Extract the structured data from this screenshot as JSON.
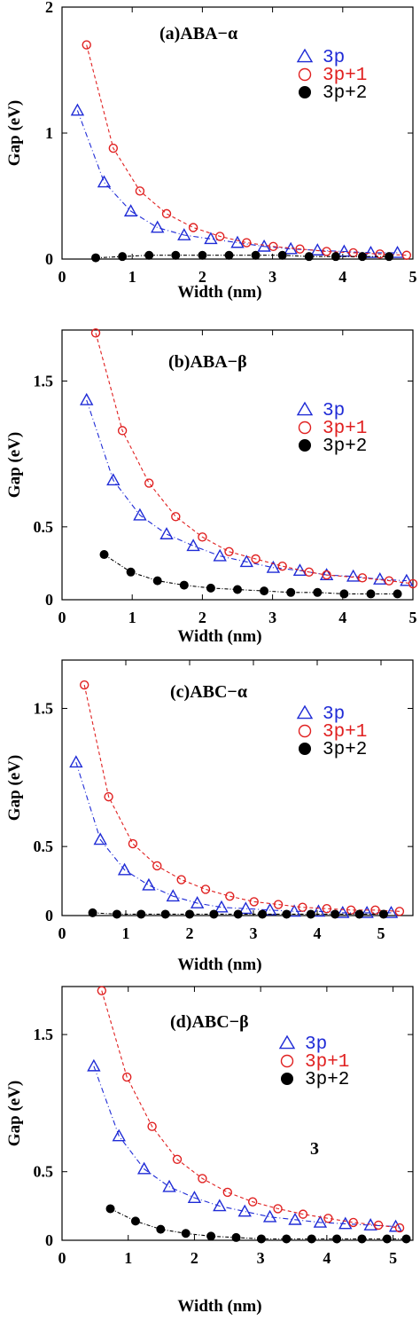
{
  "chart_data": [
    {
      "type": "line",
      "title": "(a)ABA−α",
      "xlabel": "Width (nm)",
      "ylabel": "Gap (eV)",
      "xlim": [
        0,
        5
      ],
      "ylim": [
        0,
        2
      ],
      "xticks": [
        0,
        1,
        2,
        3,
        4,
        5
      ],
      "yticks": [
        0,
        1,
        2
      ],
      "ytick_labels": [
        "0",
        "1",
        "2"
      ],
      "legend_position": "top-right",
      "series": [
        {
          "name": "3p",
          "color": "#1f2bd6",
          "marker": "triangle",
          "dash": "6,3,1,3",
          "x": [
            0.22,
            0.6,
            0.98,
            1.36,
            1.74,
            2.12,
            2.5,
            2.88,
            3.26,
            3.64,
            4.02,
            4.4,
            4.78
          ],
          "y": [
            1.18,
            0.61,
            0.38,
            0.25,
            0.19,
            0.16,
            0.13,
            0.1,
            0.08,
            0.07,
            0.06,
            0.05,
            0.05
          ]
        },
        {
          "name": "3p+1",
          "color": "#e02020",
          "marker": "circle-open",
          "dash": "4,3",
          "x": [
            0.35,
            0.73,
            1.11,
            1.49,
            1.87,
            2.25,
            2.63,
            3.01,
            3.39,
            3.77,
            4.15,
            4.53,
            4.91
          ],
          "y": [
            1.7,
            0.88,
            0.54,
            0.36,
            0.25,
            0.18,
            0.13,
            0.1,
            0.08,
            0.06,
            0.05,
            0.04,
            0.03
          ]
        },
        {
          "name": "3p+2",
          "color": "#000000",
          "marker": "circle-filled",
          "dash": "4,2,1,2",
          "x": [
            0.48,
            0.86,
            1.24,
            1.62,
            2.0,
            2.38,
            2.76,
            3.14,
            3.52,
            3.9,
            4.28,
            4.66
          ],
          "y": [
            0.01,
            0.02,
            0.03,
            0.03,
            0.03,
            0.03,
            0.03,
            0.03,
            0.02,
            0.02,
            0.02,
            0.02
          ]
        }
      ]
    },
    {
      "type": "line",
      "title": "(b)ABA−β",
      "xlabel": "Width (nm)",
      "ylabel": "Gap (eV)",
      "xlim": [
        0,
        5
      ],
      "ylim": [
        0,
        1.85
      ],
      "xticks": [
        0,
        1,
        2,
        3,
        4,
        5
      ],
      "yticks": [
        0,
        0.5,
        1.5
      ],
      "ytick_labels": [
        "0",
        "0.5",
        "1.5"
      ],
      "legend_position": "top-right",
      "series": [
        {
          "name": "3p",
          "color": "#1f2bd6",
          "marker": "triangle",
          "dash": "6,3,1,3",
          "x": [
            0.35,
            0.73,
            1.11,
            1.49,
            1.87,
            2.25,
            2.63,
            3.01,
            3.39,
            3.77,
            4.15,
            4.53,
            4.91
          ],
          "y": [
            1.37,
            0.82,
            0.58,
            0.45,
            0.37,
            0.3,
            0.26,
            0.22,
            0.2,
            0.17,
            0.16,
            0.14,
            0.13
          ]
        },
        {
          "name": "3p+1",
          "color": "#e02020",
          "marker": "circle-open",
          "dash": "4,3",
          "x": [
            0.48,
            0.86,
            1.24,
            1.62,
            2.0,
            2.38,
            2.76,
            3.14,
            3.52,
            3.77,
            4.28,
            4.66,
            5.0
          ],
          "y": [
            1.83,
            1.16,
            0.8,
            0.57,
            0.43,
            0.33,
            0.28,
            0.23,
            0.19,
            0.17,
            0.15,
            0.13,
            0.11
          ]
        },
        {
          "name": "3p+2",
          "color": "#000000",
          "marker": "circle-filled",
          "dash": "4,2,1,2",
          "x": [
            0.6,
            0.98,
            1.36,
            1.74,
            2.12,
            2.5,
            2.88,
            3.26,
            3.64,
            4.02,
            4.4,
            4.78
          ],
          "y": [
            0.31,
            0.19,
            0.13,
            0.1,
            0.08,
            0.07,
            0.06,
            0.05,
            0.05,
            0.04,
            0.04,
            0.04
          ]
        }
      ]
    },
    {
      "type": "line",
      "title": "(c)ABC−α",
      "xlabel": "Width (nm)",
      "ylabel": "Gap (eV)",
      "xlim": [
        0,
        5.5
      ],
      "ylim": [
        0,
        1.85
      ],
      "xticks": [
        0,
        1,
        2,
        3,
        4,
        5
      ],
      "yticks": [
        0,
        0.5,
        1.5
      ],
      "ytick_labels": [
        "0",
        "0.5",
        "1.5"
      ],
      "legend_position": "top-right",
      "series": [
        {
          "name": "3p",
          "color": "#1f2bd6",
          "marker": "triangle",
          "dash": "6,3,1,3",
          "x": [
            0.22,
            0.6,
            0.98,
            1.36,
            1.74,
            2.12,
            2.5,
            2.88,
            3.26,
            3.64,
            4.02,
            4.4,
            4.78,
            5.16
          ],
          "y": [
            1.11,
            0.55,
            0.33,
            0.22,
            0.14,
            0.09,
            0.06,
            0.05,
            0.04,
            0.03,
            0.03,
            0.02,
            0.02,
            0.02
          ]
        },
        {
          "name": "3p+1",
          "color": "#e02020",
          "marker": "circle-open",
          "dash": "4,3",
          "x": [
            0.35,
            0.73,
            1.11,
            1.49,
            1.87,
            2.25,
            2.63,
            3.01,
            3.39,
            3.77,
            4.15,
            4.53,
            4.91,
            5.29
          ],
          "y": [
            1.67,
            0.86,
            0.52,
            0.36,
            0.26,
            0.19,
            0.14,
            0.1,
            0.08,
            0.06,
            0.05,
            0.04,
            0.04,
            0.03
          ]
        },
        {
          "name": "3p+2",
          "color": "#000000",
          "marker": "circle-filled",
          "dash": "4,2,1,2",
          "x": [
            0.48,
            0.86,
            1.24,
            1.62,
            2.0,
            2.38,
            2.76,
            3.14,
            3.52,
            3.9,
            4.28,
            4.66,
            5.04
          ],
          "y": [
            0.02,
            0.01,
            0.01,
            0.01,
            0.01,
            0.01,
            0.01,
            0.01,
            0.01,
            0.01,
            0.01,
            0.01,
            0.01
          ]
        }
      ]
    },
    {
      "type": "line",
      "title": "(d)ABC−β",
      "xlabel": "Width (nm)",
      "ylabel": "Gap (eV)",
      "xlim": [
        0,
        5.3
      ],
      "ylim": [
        0,
        1.85
      ],
      "xticks": [
        0,
        1,
        2,
        3,
        4,
        5
      ],
      "yticks": [
        0,
        0.5,
        1.5
      ],
      "ytick_labels": [
        "0",
        "0.5",
        "1.5"
      ],
      "legend_position": "top-right",
      "annotation": "3",
      "series": [
        {
          "name": "3p",
          "color": "#1f2bd6",
          "marker": "triangle",
          "dash": "6,3,1,3",
          "x": [
            0.48,
            0.86,
            1.24,
            1.62,
            2.0,
            2.38,
            2.76,
            3.14,
            3.52,
            3.9,
            4.28,
            4.66,
            5.04
          ],
          "y": [
            1.27,
            0.76,
            0.52,
            0.39,
            0.31,
            0.25,
            0.21,
            0.17,
            0.15,
            0.13,
            0.12,
            0.11,
            0.1
          ]
        },
        {
          "name": "3p+1",
          "color": "#e02020",
          "marker": "circle-open",
          "dash": "4,3",
          "x": [
            0.6,
            0.98,
            1.36,
            1.74,
            2.12,
            2.5,
            2.88,
            3.26,
            3.64,
            4.02,
            4.4,
            4.78,
            5.1
          ],
          "y": [
            1.82,
            1.19,
            0.83,
            0.59,
            0.45,
            0.35,
            0.28,
            0.23,
            0.19,
            0.16,
            0.13,
            0.11,
            0.09
          ]
        },
        {
          "name": "3p+2",
          "color": "#000000",
          "marker": "circle-filled",
          "dash": "4,2,1,2",
          "x": [
            0.73,
            1.11,
            1.49,
            1.87,
            2.25,
            2.63,
            3.01,
            3.39,
            3.77,
            4.15,
            4.53,
            4.91,
            5.2
          ],
          "y": [
            0.23,
            0.14,
            0.08,
            0.05,
            0.03,
            0.02,
            0.01,
            0.01,
            0.01,
            0.01,
            0.01,
            0.01,
            0.01
          ]
        }
      ]
    }
  ]
}
